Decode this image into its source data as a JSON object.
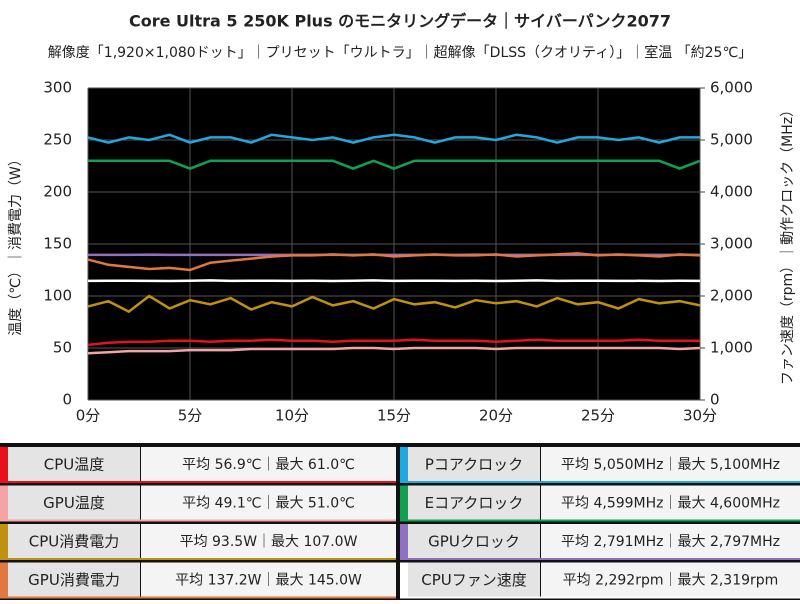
{
  "chart_data": {
    "type": "line",
    "title": "Core Ultra 5 250K Plus のモニタリングデータ｜サイバーパンク2077",
    "subtitle": "解像度「1,920×1,080ドット」｜プリセット「ウルトラ」｜超解像「DLSS（クオリティ）」｜室温 「約25℃」",
    "y_label": "温度（℃）｜消費電力（W）",
    "y2_label": "ファン速度（rpm）｜動作クロック（MHz）",
    "xlim": [
      0,
      30
    ],
    "xticks": [
      {
        "value": 0,
        "label": "0分"
      },
      {
        "value": 5,
        "label": "5分"
      },
      {
        "value": 10,
        "label": "10分"
      },
      {
        "value": 15,
        "label": "15分"
      },
      {
        "value": 20,
        "label": "20分"
      },
      {
        "value": 25,
        "label": "25分"
      },
      {
        "value": 30,
        "label": "30分"
      }
    ],
    "ylim": [
      0,
      300
    ],
    "yticks": [
      0,
      50,
      100,
      150,
      200,
      250,
      300
    ],
    "y2lim": [
      0,
      6000
    ],
    "y2ticks": [
      0,
      {
        "value": 1000,
        "label": "1,000"
      },
      {
        "value": 2000,
        "label": "2,000"
      },
      {
        "value": 3000,
        "label": "3,000"
      },
      {
        "value": 4000,
        "label": "4,000"
      },
      {
        "value": 5000,
        "label": "5,000"
      },
      {
        "value": 6000,
        "label": "6,000"
      }
    ],
    "grid": true,
    "x": [
      0,
      1,
      2,
      3,
      4,
      5,
      6,
      7,
      8,
      9,
      10,
      11,
      12,
      13,
      14,
      15,
      16,
      17,
      18,
      19,
      20,
      21,
      22,
      23,
      24,
      25,
      26,
      27,
      28,
      29,
      30
    ],
    "series": [
      {
        "name": "CPU温度",
        "summary": "平均 56.9℃｜最大 61.0℃",
        "color": "#e8101a",
        "values": [
          53,
          55,
          56,
          56,
          57,
          57,
          56,
          57,
          57,
          58,
          57,
          57,
          56,
          57,
          57,
          57,
          58,
          57,
          57,
          57,
          56,
          57,
          58,
          57,
          57,
          57,
          57,
          58,
          57,
          57,
          57
        ]
      },
      {
        "name": "GPU温度",
        "summary": "平均 49.1℃｜最大 51.0℃",
        "color": "#f4a4a4",
        "values": [
          45,
          46,
          47,
          47,
          47,
          48,
          48,
          48,
          49,
          49,
          49,
          49,
          49,
          50,
          50,
          49,
          50,
          50,
          50,
          50,
          49,
          50,
          50,
          50,
          50,
          50,
          50,
          50,
          50,
          49,
          50
        ]
      },
      {
        "name": "CPU消費電力",
        "summary": "平均 93.5W｜最大 107.0W",
        "color": "#c0900f",
        "values": [
          90,
          95,
          85,
          100,
          88,
          96,
          92,
          98,
          87,
          94,
          90,
          99,
          91,
          95,
          88,
          97,
          92,
          94,
          89,
          96,
          93,
          95,
          90,
          98,
          92,
          94,
          88,
          97,
          93,
          95,
          91
        ]
      },
      {
        "name": "GPU消費電力",
        "summary": "平均 137.2W｜最大 145.0W",
        "color": "#e07840",
        "values": [
          135,
          130,
          128,
          126,
          127,
          125,
          132,
          134,
          136,
          138,
          139,
          139,
          140,
          139,
          140,
          138,
          139,
          140,
          139,
          139,
          140,
          138,
          139,
          140,
          141,
          139,
          140,
          139,
          138,
          140,
          139
        ]
      },
      {
        "name": "Pコアクロック",
        "summary": "平均 5,050MHz｜最大 5,100MHz",
        "color": "#20a8e0",
        "axis": "y2",
        "values": [
          5050,
          4950,
          5050,
          5000,
          5100,
          4950,
          5050,
          5050,
          4950,
          5100,
          5050,
          5000,
          5050,
          4950,
          5050,
          5100,
          5050,
          4950,
          5050,
          5050,
          5000,
          5100,
          5050,
          4950,
          5050,
          5050,
          5000,
          5050,
          4950,
          5050,
          5050
        ]
      },
      {
        "name": "Eコアクロック",
        "summary": "平均 4,599MHz｜最大 4,600MHz",
        "color": "#10a050",
        "axis": "y2",
        "values": [
          4600,
          4600,
          4600,
          4600,
          4600,
          4450,
          4600,
          4600,
          4600,
          4600,
          4600,
          4600,
          4600,
          4450,
          4600,
          4450,
          4600,
          4600,
          4600,
          4600,
          4600,
          4600,
          4600,
          4600,
          4600,
          4600,
          4600,
          4600,
          4600,
          4450,
          4600
        ]
      },
      {
        "name": "GPUクロック",
        "summary": "平均 2,791MHz｜最大 2,797MHz",
        "color": "#9070c0",
        "axis": "y2",
        "values": [
          2791,
          2791,
          2791,
          2797,
          2791,
          2791,
          2791,
          2791,
          2791,
          2791,
          2791,
          2791,
          2791,
          2791,
          2791,
          2791,
          2791,
          2791,
          2791,
          2797,
          2791,
          2791,
          2791,
          2791,
          2791,
          2791,
          2791,
          2791,
          2791,
          2791,
          2791
        ]
      },
      {
        "name": "CPUファン速度",
        "summary": "平均 2,292rpm｜最大 2,319rpm",
        "color": "#ffffff",
        "axis": "y2",
        "values": [
          2290,
          2292,
          2295,
          2290,
          2288,
          2292,
          2300,
          2290,
          2292,
          2295,
          2290,
          2292,
          2288,
          2292,
          2300,
          2290,
          2292,
          2295,
          2290,
          2292,
          2288,
          2292,
          2300,
          2290,
          2292,
          2295,
          2290,
          2292,
          2288,
          2292,
          2290
        ]
      }
    ]
  }
}
